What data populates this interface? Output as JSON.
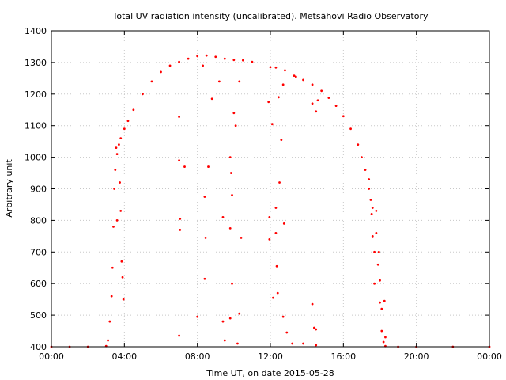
{
  "chart_data": {
    "type": "scatter",
    "title": "Total UV radiation intensity (uncalibrated). Metsähovi Radio Observatory",
    "xlabel": "Time UT, on date 2015-05-28",
    "ylabel": "Arbitrary unit",
    "xlim": [
      0,
      24
    ],
    "ylim": [
      400,
      1400
    ],
    "x_ticks": [
      0,
      4,
      8,
      12,
      16,
      20,
      24
    ],
    "x_tick_labels": [
      "00:00",
      "04:00",
      "08:00",
      "12:00",
      "16:00",
      "20:00",
      "00:00"
    ],
    "y_ticks": [
      400,
      500,
      600,
      700,
      800,
      900,
      1000,
      1100,
      1200,
      1300,
      1400
    ],
    "grid": true,
    "marker_color": "#ff0000",
    "series": [
      {
        "points": [
          [
            0.0,
            400
          ],
          [
            1.0,
            400
          ],
          [
            2.0,
            400
          ],
          [
            3.0,
            402
          ],
          [
            3.1,
            420
          ],
          [
            3.2,
            480
          ],
          [
            3.3,
            560
          ],
          [
            3.35,
            650
          ],
          [
            3.4,
            780
          ],
          [
            3.45,
            900
          ],
          [
            3.5,
            960
          ],
          [
            3.6,
            1010
          ],
          [
            3.7,
            1040
          ],
          [
            3.8,
            1060
          ],
          [
            4.0,
            1090
          ],
          [
            4.2,
            1115
          ],
          [
            4.5,
            1150
          ],
          [
            5.0,
            1200
          ],
          [
            5.5,
            1240
          ],
          [
            6.0,
            1270
          ],
          [
            6.5,
            1290
          ],
          [
            7.0,
            1302
          ],
          [
            7.5,
            1312
          ],
          [
            8.0,
            1320
          ],
          [
            8.5,
            1322
          ],
          [
            9.0,
            1318
          ],
          [
            9.5,
            1312
          ],
          [
            10.0,
            1308
          ],
          [
            10.5,
            1307
          ],
          [
            11.0,
            1302
          ],
          [
            12.0,
            1285
          ],
          [
            12.3,
            1284
          ],
          [
            12.8,
            1275
          ],
          [
            13.3,
            1258
          ],
          [
            13.8,
            1245
          ],
          [
            14.3,
            1230
          ],
          [
            14.8,
            1210
          ],
          [
            15.2,
            1188
          ],
          [
            15.6,
            1163
          ],
          [
            16.0,
            1130
          ],
          [
            16.4,
            1090
          ],
          [
            16.8,
            1040
          ],
          [
            17.0,
            1000
          ],
          [
            17.2,
            960
          ],
          [
            17.4,
            900
          ],
          [
            17.6,
            840
          ],
          [
            17.8,
            760
          ],
          [
            17.9,
            660
          ],
          [
            18.0,
            540
          ],
          [
            18.1,
            450
          ],
          [
            18.2,
            415
          ],
          [
            18.3,
            402
          ],
          [
            19.0,
            400
          ],
          [
            20.0,
            400
          ],
          [
            22.0,
            400
          ],
          [
            24.0,
            400
          ],
          [
            3.55,
            1030
          ],
          [
            3.75,
            920
          ],
          [
            3.8,
            830
          ],
          [
            3.85,
            670
          ],
          [
            3.9,
            620
          ],
          [
            3.95,
            550
          ],
          [
            3.6,
            800
          ],
          [
            7.0,
            1128
          ],
          [
            7.0,
            990
          ],
          [
            7.05,
            805
          ],
          [
            7.05,
            770
          ],
          [
            7.3,
            970
          ],
          [
            7.0,
            435
          ],
          [
            8.0,
            495
          ],
          [
            8.3,
            1290
          ],
          [
            8.4,
            875
          ],
          [
            8.45,
            745
          ],
          [
            8.4,
            615
          ],
          [
            8.6,
            970
          ],
          [
            8.8,
            1185
          ],
          [
            9.2,
            1240
          ],
          [
            9.4,
            810
          ],
          [
            9.4,
            480
          ],
          [
            9.5,
            420
          ],
          [
            9.8,
            1000
          ],
          [
            9.85,
            950
          ],
          [
            9.9,
            880
          ],
          [
            9.8,
            775
          ],
          [
            9.9,
            600
          ],
          [
            9.8,
            490
          ],
          [
            10.0,
            1140
          ],
          [
            10.1,
            1100
          ],
          [
            10.3,
            1240
          ],
          [
            10.4,
            745
          ],
          [
            10.3,
            505
          ],
          [
            10.2,
            410
          ],
          [
            11.9,
            1175
          ],
          [
            11.95,
            810
          ],
          [
            11.95,
            740
          ],
          [
            12.1,
            1105
          ],
          [
            12.15,
            555
          ],
          [
            12.3,
            840
          ],
          [
            12.3,
            760
          ],
          [
            12.35,
            655
          ],
          [
            12.4,
            570
          ],
          [
            12.45,
            1190
          ],
          [
            12.5,
            920
          ],
          [
            12.6,
            1055
          ],
          [
            12.7,
            1230
          ],
          [
            12.75,
            790
          ],
          [
            12.7,
            495
          ],
          [
            12.9,
            445
          ],
          [
            13.2,
            410
          ],
          [
            13.4,
            1255
          ],
          [
            13.8,
            410
          ],
          [
            14.3,
            1170
          ],
          [
            14.3,
            535
          ],
          [
            14.4,
            460
          ],
          [
            14.5,
            455
          ],
          [
            14.5,
            1145
          ],
          [
            14.6,
            1180
          ],
          [
            14.5,
            405
          ],
          [
            17.4,
            930
          ],
          [
            17.5,
            865
          ],
          [
            17.55,
            820
          ],
          [
            17.6,
            750
          ],
          [
            17.7,
            700
          ],
          [
            17.7,
            600
          ],
          [
            17.8,
            830
          ],
          [
            17.95,
            700
          ],
          [
            18.0,
            610
          ],
          [
            18.1,
            520
          ],
          [
            18.25,
            545
          ],
          [
            18.3,
            430
          ]
        ]
      }
    ]
  }
}
